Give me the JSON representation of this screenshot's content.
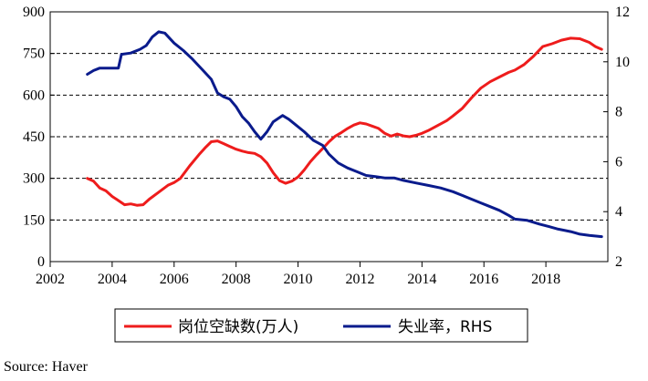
{
  "chart_data": {
    "type": "line",
    "title": "",
    "xlabel": "",
    "ylabel": "",
    "xlim": [
      2002,
      2020
    ],
    "ylim_left": [
      0,
      900
    ],
    "ylim_right": [
      2,
      12
    ],
    "x_ticks": [
      "2002",
      "2004",
      "2006",
      "2008",
      "2010",
      "2012",
      "2014",
      "2016",
      "2018"
    ],
    "y_ticks_left": [
      "0",
      "150",
      "300",
      "450",
      "600",
      "750",
      "900"
    ],
    "y_ticks_right": [
      "2",
      "4",
      "6",
      "8",
      "10",
      "12"
    ],
    "grid": "horizontal dashed at left-axis ticks",
    "legend_position": "bottom",
    "series": [
      {
        "name": "岗位空缺数(万人)",
        "axis": "left",
        "color": "#ee1c1c",
        "points": [
          [
            2003.2,
            300
          ],
          [
            2003.4,
            290
          ],
          [
            2003.6,
            265
          ],
          [
            2003.8,
            255
          ],
          [
            2004.0,
            235
          ],
          [
            2004.2,
            220
          ],
          [
            2004.4,
            205
          ],
          [
            2004.6,
            208
          ],
          [
            2004.8,
            203
          ],
          [
            2005.0,
            205
          ],
          [
            2005.2,
            225
          ],
          [
            2005.5,
            250
          ],
          [
            2005.8,
            275
          ],
          [
            2006.0,
            285
          ],
          [
            2006.2,
            300
          ],
          [
            2006.5,
            345
          ],
          [
            2006.8,
            385
          ],
          [
            2007.0,
            410
          ],
          [
            2007.2,
            432
          ],
          [
            2007.4,
            435
          ],
          [
            2007.6,
            425
          ],
          [
            2007.8,
            415
          ],
          [
            2008.0,
            405
          ],
          [
            2008.2,
            398
          ],
          [
            2008.4,
            393
          ],
          [
            2008.6,
            390
          ],
          [
            2008.8,
            378
          ],
          [
            2009.0,
            355
          ],
          [
            2009.2,
            320
          ],
          [
            2009.4,
            292
          ],
          [
            2009.6,
            282
          ],
          [
            2009.8,
            290
          ],
          [
            2010.0,
            305
          ],
          [
            2010.2,
            330
          ],
          [
            2010.4,
            360
          ],
          [
            2010.6,
            385
          ],
          [
            2010.8,
            408
          ],
          [
            2011.0,
            432
          ],
          [
            2011.2,
            452
          ],
          [
            2011.4,
            465
          ],
          [
            2011.6,
            480
          ],
          [
            2011.8,
            492
          ],
          [
            2012.0,
            500
          ],
          [
            2012.2,
            496
          ],
          [
            2012.4,
            488
          ],
          [
            2012.6,
            480
          ],
          [
            2012.8,
            462
          ],
          [
            2013.0,
            452
          ],
          [
            2013.2,
            460
          ],
          [
            2013.4,
            453
          ],
          [
            2013.6,
            450
          ],
          [
            2013.8,
            455
          ],
          [
            2014.0,
            462
          ],
          [
            2014.2,
            472
          ],
          [
            2014.5,
            490
          ],
          [
            2014.8,
            508
          ],
          [
            2015.0,
            525
          ],
          [
            2015.3,
            552
          ],
          [
            2015.6,
            590
          ],
          [
            2015.9,
            625
          ],
          [
            2016.2,
            648
          ],
          [
            2016.5,
            665
          ],
          [
            2016.8,
            682
          ],
          [
            2017.0,
            690
          ],
          [
            2017.3,
            710
          ],
          [
            2017.6,
            740
          ],
          [
            2017.9,
            775
          ],
          [
            2018.2,
            785
          ],
          [
            2018.5,
            798
          ],
          [
            2018.8,
            805
          ],
          [
            2019.1,
            803
          ],
          [
            2019.4,
            790
          ],
          [
            2019.6,
            775
          ],
          [
            2019.8,
            765
          ]
        ]
      },
      {
        "name": "失业率，RHS",
        "axis": "right",
        "color": "#0a1b8c",
        "points": [
          [
            2003.2,
            9.5
          ],
          [
            2003.4,
            9.65
          ],
          [
            2003.6,
            9.75
          ],
          [
            2003.9,
            9.75
          ],
          [
            2004.2,
            9.75
          ],
          [
            2004.3,
            10.3
          ],
          [
            2004.6,
            10.35
          ],
          [
            2004.9,
            10.5
          ],
          [
            2005.1,
            10.65
          ],
          [
            2005.3,
            11.0
          ],
          [
            2005.5,
            11.2
          ],
          [
            2005.7,
            11.15
          ],
          [
            2006.0,
            10.75
          ],
          [
            2006.3,
            10.45
          ],
          [
            2006.6,
            10.1
          ],
          [
            2006.9,
            9.7
          ],
          [
            2007.2,
            9.3
          ],
          [
            2007.4,
            8.75
          ],
          [
            2007.6,
            8.6
          ],
          [
            2007.8,
            8.5
          ],
          [
            2008.0,
            8.2
          ],
          [
            2008.2,
            7.8
          ],
          [
            2008.4,
            7.55
          ],
          [
            2008.6,
            7.2
          ],
          [
            2008.8,
            6.9
          ],
          [
            2009.0,
            7.2
          ],
          [
            2009.2,
            7.6
          ],
          [
            2009.5,
            7.85
          ],
          [
            2009.7,
            7.7
          ],
          [
            2009.9,
            7.5
          ],
          [
            2010.2,
            7.2
          ],
          [
            2010.5,
            6.85
          ],
          [
            2010.8,
            6.65
          ],
          [
            2011.0,
            6.3
          ],
          [
            2011.3,
            5.95
          ],
          [
            2011.6,
            5.75
          ],
          [
            2011.9,
            5.6
          ],
          [
            2012.2,
            5.45
          ],
          [
            2012.5,
            5.4
          ],
          [
            2012.8,
            5.35
          ],
          [
            2013.1,
            5.35
          ],
          [
            2013.4,
            5.25
          ],
          [
            2013.8,
            5.15
          ],
          [
            2014.2,
            5.05
          ],
          [
            2014.6,
            4.95
          ],
          [
            2015.0,
            4.8
          ],
          [
            2015.3,
            4.65
          ],
          [
            2015.6,
            4.5
          ],
          [
            2015.9,
            4.35
          ],
          [
            2016.2,
            4.2
          ],
          [
            2016.5,
            4.05
          ],
          [
            2016.8,
            3.85
          ],
          [
            2017.0,
            3.7
          ],
          [
            2017.4,
            3.65
          ],
          [
            2017.8,
            3.5
          ],
          [
            2018.1,
            3.4
          ],
          [
            2018.4,
            3.3
          ],
          [
            2018.8,
            3.2
          ],
          [
            2019.1,
            3.1
          ],
          [
            2019.4,
            3.05
          ],
          [
            2019.8,
            3.0
          ]
        ]
      }
    ],
    "source": "Source: Haver"
  }
}
